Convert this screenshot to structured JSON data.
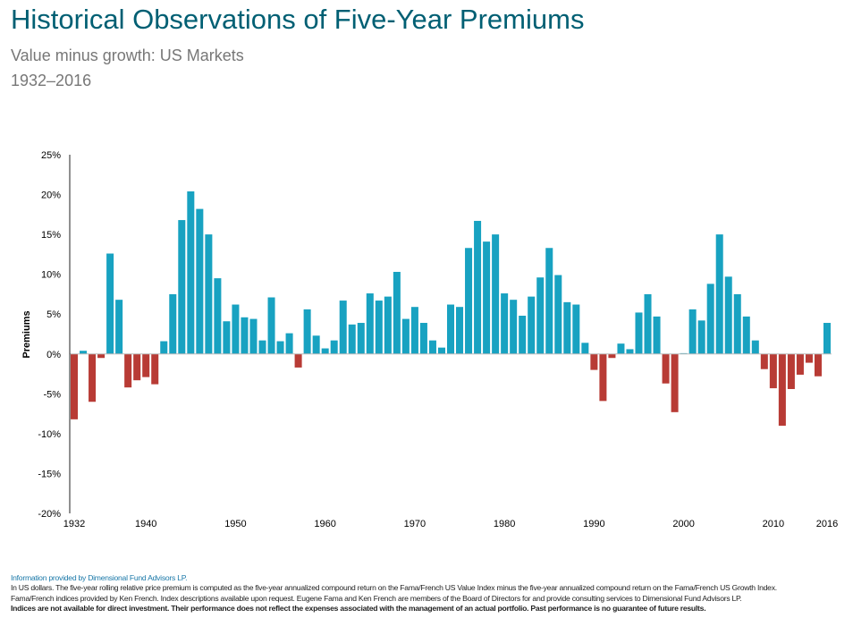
{
  "header": {
    "title": "Historical Observations of Five-Year Premiums",
    "subtitle": "Value minus growth: US Markets",
    "period": "1932–2016"
  },
  "chart_data": {
    "type": "bar",
    "ylabel": "Premiums",
    "xlabel": "",
    "ylim": [
      -20,
      25
    ],
    "yticks": [
      25,
      20,
      15,
      10,
      5,
      0,
      -5,
      -10,
      -15,
      -20
    ],
    "ytick_labels": [
      "25%",
      "20%",
      "15%",
      "10%",
      "5%",
      "0%",
      "-5%",
      "-10%",
      "-15%",
      "-20%"
    ],
    "xtick_years": [
      1932,
      1940,
      1950,
      1960,
      1970,
      1980,
      1990,
      2000,
      2010,
      2016
    ],
    "x": [
      1932,
      1933,
      1934,
      1935,
      1936,
      1937,
      1938,
      1939,
      1940,
      1941,
      1942,
      1943,
      1944,
      1945,
      1946,
      1947,
      1948,
      1949,
      1950,
      1951,
      1952,
      1953,
      1954,
      1955,
      1956,
      1957,
      1958,
      1959,
      1960,
      1961,
      1962,
      1963,
      1964,
      1965,
      1966,
      1967,
      1968,
      1969,
      1970,
      1971,
      1972,
      1973,
      1974,
      1975,
      1976,
      1977,
      1978,
      1979,
      1980,
      1981,
      1982,
      1983,
      1984,
      1985,
      1986,
      1987,
      1988,
      1989,
      1990,
      1991,
      1992,
      1993,
      1994,
      1995,
      1996,
      1997,
      1998,
      1999,
      2000,
      2001,
      2002,
      2003,
      2004,
      2005,
      2006,
      2007,
      2008,
      2009,
      2010,
      2011,
      2012,
      2013,
      2014,
      2015,
      2016
    ],
    "values": [
      -8.2,
      0.4,
      -6.0,
      -0.5,
      12.6,
      6.8,
      -4.2,
      -3.3,
      -2.9,
      -3.8,
      1.6,
      7.5,
      16.8,
      20.4,
      18.2,
      15.0,
      9.5,
      4.1,
      6.2,
      4.6,
      4.4,
      1.7,
      7.1,
      1.6,
      2.6,
      -1.7,
      5.6,
      2.3,
      0.7,
      1.7,
      6.7,
      3.7,
      3.9,
      7.6,
      6.7,
      7.2,
      10.3,
      4.4,
      5.9,
      3.9,
      1.7,
      0.8,
      6.2,
      5.9,
      13.3,
      16.7,
      14.1,
      15.0,
      7.6,
      6.8,
      4.8,
      7.2,
      9.6,
      13.3,
      9.9,
      6.5,
      6.2,
      1.4,
      -2.0,
      -5.9,
      -0.5,
      1.3,
      0.6,
      5.2,
      7.5,
      4.7,
      -3.7,
      -7.3,
      0.1,
      5.6,
      4.2,
      8.8,
      15.0,
      9.7,
      7.5,
      4.7,
      1.7,
      -1.9,
      -4.3,
      -9.0,
      -4.4,
      -2.6,
      -1.1,
      -2.8,
      3.9
    ],
    "positive_color": "#18a2c1",
    "negative_color": "#b83b35",
    "legend": "none",
    "grid": false
  },
  "footer": {
    "credit": "Information provided by Dimensional Fund Advisors LP.",
    "line1": "In US dollars. The five-year rolling relative price premium is computed as the five-year annualized compound return on the Fama/French US Value Index minus the five-year annualized compound return on the Fama/French US Growth Index.",
    "line2": "Fama/French indices provided by Ken French. Index descriptions available upon request. Eugene Fama and Ken French are members of the Board of Directors for and provide consulting services to Dimensional Fund Advisors LP.",
    "disclaimer": "Indices are not available for direct investment. Their performance does not reflect the expenses associated with the management of an actual portfolio. Past performance is no guarantee of future results."
  }
}
